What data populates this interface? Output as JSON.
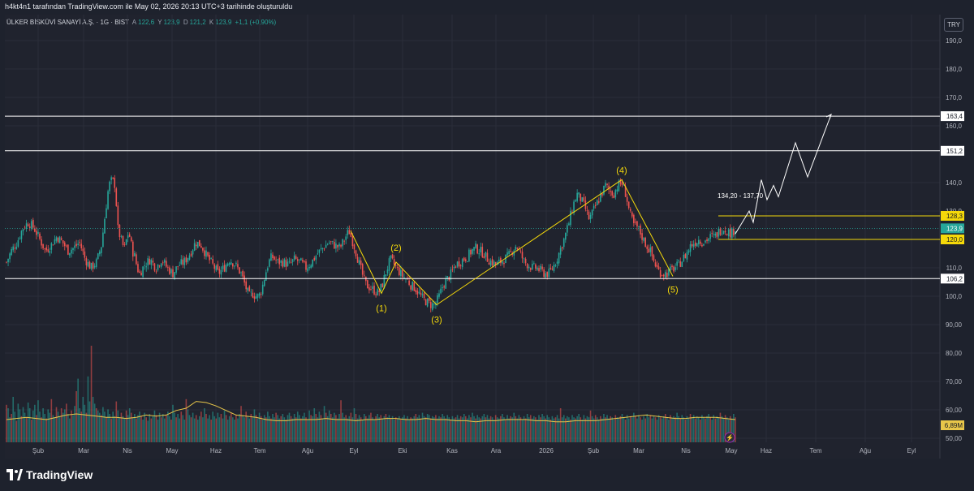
{
  "caption": "h4kt4n1 tarafından TradingView.com ile May 02, 2026 20:13 UTC+3 tarihinde oluşturuldu",
  "symbol": {
    "name": "ÜLKER BİSKÜVİ SANAYİ A.Ş. · 1G · BIST",
    "a_key": "A",
    "a_val": "122,6",
    "y_key": "Y",
    "y_val": "123,9",
    "d_key": "D",
    "d_val": "121,2",
    "k_key": "K",
    "k_val": "123,9",
    "change": "+1,1 (+0,90%)"
  },
  "currency": "TRY",
  "brand": "TradingView",
  "colors": {
    "background": "#1e222d",
    "up": "#26a69a",
    "down": "#ef5350",
    "wave": "#f5d90a",
    "level": "#ffffff",
    "volume_ma": "#e9c74a"
  },
  "chart_data": {
    "type": "candlestick",
    "x_labels": [
      "Şub",
      "Mar",
      "Nis",
      "May",
      "Haz",
      "Tem",
      "Ağu",
      "Eyl",
      "Eki",
      "Kas",
      "Ara",
      "2026",
      "Şub",
      "Mar",
      "Nis",
      "May",
      "Haz",
      "Tem",
      "Ağu",
      "Eyl"
    ],
    "y_ticks": [
      "190,0",
      "180,0",
      "170,0",
      "160,0",
      "140,0",
      "130,0",
      "110,0",
      "100,0",
      "90,00",
      "80,00",
      "70,00",
      "60,00",
      "50,00"
    ],
    "ylim": [
      47,
      203
    ],
    "price_path": [
      [
        0,
        112
      ],
      [
        6,
        116
      ],
      [
        13,
        119
      ],
      [
        20,
        124
      ],
      [
        27,
        126
      ],
      [
        34,
        124
      ],
      [
        41,
        120
      ],
      [
        48,
        116
      ],
      [
        55,
        118
      ],
      [
        62,
        121
      ],
      [
        69,
        119
      ],
      [
        76,
        116
      ],
      [
        83,
        117
      ],
      [
        90,
        119
      ],
      [
        97,
        113
      ],
      [
        104,
        110
      ],
      [
        111,
        112
      ],
      [
        117,
        118
      ],
      [
        122,
        130
      ],
      [
        126,
        139
      ],
      [
        130,
        141
      ],
      [
        134,
        139
      ],
      [
        137,
        124
      ],
      [
        140,
        121
      ],
      [
        143,
        118
      ],
      [
        146,
        117
      ],
      [
        149,
        122
      ],
      [
        152,
        121
      ],
      [
        155,
        116
      ],
      [
        158,
        114
      ],
      [
        161,
        110
      ],
      [
        164,
        108
      ],
      [
        170,
        111
      ],
      [
        177,
        113
      ],
      [
        184,
        110
      ],
      [
        191,
        113
      ],
      [
        198,
        110
      ],
      [
        205,
        108
      ],
      [
        212,
        111
      ],
      [
        219,
        112
      ],
      [
        226,
        115
      ],
      [
        233,
        119
      ],
      [
        240,
        118
      ],
      [
        247,
        114
      ],
      [
        254,
        111
      ],
      [
        261,
        108
      ],
      [
        268,
        110
      ],
      [
        275,
        113
      ],
      [
        282,
        111
      ],
      [
        289,
        108
      ],
      [
        295,
        103
      ],
      [
        299,
        100
      ],
      [
        303,
        101
      ],
      [
        307,
        100
      ],
      [
        311,
        100
      ],
      [
        315,
        103
      ],
      [
        319,
        108
      ],
      [
        323,
        112
      ],
      [
        327,
        114
      ],
      [
        334,
        112
      ],
      [
        341,
        112
      ],
      [
        348,
        111
      ],
      [
        355,
        113
      ],
      [
        362,
        112
      ],
      [
        369,
        110
      ],
      [
        376,
        112
      ],
      [
        383,
        115
      ],
      [
        390,
        117
      ],
      [
        397,
        119
      ],
      [
        404,
        118
      ],
      [
        411,
        117
      ],
      [
        418,
        121
      ],
      [
        422,
        123
      ],
      [
        428,
        118
      ],
      [
        433,
        113
      ],
      [
        438,
        108
      ],
      [
        443,
        104
      ],
      [
        448,
        103
      ],
      [
        453,
        102
      ],
      [
        458,
        101
      ],
      [
        463,
        104
      ],
      [
        468,
        109
      ],
      [
        473,
        113
      ],
      [
        478,
        111
      ],
      [
        483,
        109
      ],
      [
        488,
        107
      ],
      [
        493,
        106
      ],
      [
        498,
        104
      ],
      [
        503,
        103
      ],
      [
        508,
        101
      ],
      [
        513,
        99
      ],
      [
        518,
        98
      ],
      [
        523,
        97
      ],
      [
        528,
        97
      ],
      [
        533,
        100
      ],
      [
        538,
        104
      ],
      [
        543,
        106
      ],
      [
        548,
        108
      ],
      [
        553,
        111
      ],
      [
        558,
        112
      ],
      [
        563,
        113
      ],
      [
        568,
        114
      ],
      [
        573,
        116
      ],
      [
        578,
        117
      ],
      [
        583,
        116
      ],
      [
        588,
        115
      ],
      [
        593,
        113
      ],
      [
        598,
        112
      ],
      [
        603,
        111
      ],
      [
        608,
        112
      ],
      [
        613,
        113
      ],
      [
        618,
        114
      ],
      [
        623,
        116
      ],
      [
        628,
        118
      ],
      [
        633,
        115
      ],
      [
        638,
        112
      ],
      [
        643,
        111
      ],
      [
        648,
        110
      ],
      [
        653,
        110
      ],
      [
        658,
        109
      ],
      [
        663,
        108
      ],
      [
        668,
        108
      ],
      [
        673,
        110
      ],
      [
        678,
        113
      ],
      [
        683,
        117
      ],
      [
        688,
        121
      ],
      [
        693,
        126
      ],
      [
        698,
        132
      ],
      [
        703,
        136
      ],
      [
        708,
        134
      ],
      [
        713,
        131
      ],
      [
        718,
        127
      ],
      [
        723,
        130
      ],
      [
        728,
        133
      ],
      [
        733,
        136
      ],
      [
        738,
        139
      ],
      [
        743,
        137
      ],
      [
        748,
        136
      ],
      [
        753,
        139
      ],
      [
        758,
        140
      ],
      [
        763,
        136
      ],
      [
        768,
        129
      ],
      [
        773,
        125
      ],
      [
        778,
        124
      ],
      [
        783,
        121
      ],
      [
        788,
        118
      ],
      [
        793,
        116
      ],
      [
        798,
        112
      ],
      [
        803,
        109
      ],
      [
        808,
        108
      ],
      [
        813,
        108
      ],
      [
        818,
        109
      ],
      [
        823,
        110
      ],
      [
        828,
        111
      ],
      [
        833,
        113
      ],
      [
        838,
        115
      ],
      [
        843,
        118
      ],
      [
        848,
        119
      ],
      [
        853,
        120
      ],
      [
        858,
        119
      ],
      [
        863,
        120
      ],
      [
        868,
        121
      ],
      [
        873,
        121
      ],
      [
        878,
        123
      ],
      [
        883,
        124
      ],
      [
        888,
        123
      ],
      [
        893,
        122
      ],
      [
        898,
        124
      ]
    ],
    "levels": [
      {
        "value": 163.4,
        "label": "163,4"
      },
      {
        "value": 151.2,
        "label": "151,2"
      },
      {
        "value": 106.2,
        "label": "106,2"
      }
    ],
    "zone_levels": [
      {
        "value": 128.3,
        "label": "128,3"
      },
      {
        "value": 120.0,
        "label": "120,0"
      }
    ],
    "last_price": {
      "value": 123.9,
      "label": "123,9"
    },
    "zone_text": "134,20 - 137,70",
    "waves": [
      {
        "label": "(1)",
        "x": 462,
        "y": 101
      },
      {
        "label": "(2)",
        "x": 480,
        "y": 112
      },
      {
        "label": "(3)",
        "x": 530,
        "y": 97
      },
      {
        "label": "(4)",
        "x": 758,
        "y": 141
      },
      {
        "label": "(5)",
        "x": 821,
        "y": 107
      }
    ],
    "wave_path": [
      [
        424,
        123
      ],
      [
        462,
        101
      ],
      [
        480,
        112
      ],
      [
        530,
        97
      ],
      [
        758,
        141
      ],
      [
        821,
        107
      ]
    ],
    "projection_path": [
      [
        898,
        122
      ],
      [
        915,
        130
      ],
      [
        920,
        126
      ],
      [
        930,
        141
      ],
      [
        937,
        134
      ],
      [
        945,
        139
      ],
      [
        951,
        135
      ],
      [
        972,
        154
      ],
      [
        987,
        142
      ],
      [
        1016,
        164
      ]
    ],
    "volume": {
      "label": "6,89M",
      "ma": [
        0.2,
        0.21,
        0.22,
        0.21,
        0.2,
        0.22,
        0.24,
        0.25,
        0.24,
        0.23,
        0.22,
        0.22,
        0.21,
        0.22,
        0.24,
        0.23,
        0.24,
        0.28,
        0.3,
        0.36,
        0.35,
        0.32,
        0.28,
        0.24,
        0.23,
        0.22,
        0.2,
        0.19,
        0.19,
        0.2,
        0.2,
        0.2,
        0.21,
        0.2,
        0.2,
        0.19,
        0.2,
        0.2,
        0.21,
        0.21,
        0.2,
        0.2,
        0.21,
        0.2,
        0.2,
        0.19,
        0.19,
        0.18,
        0.19,
        0.19,
        0.2,
        0.2,
        0.2,
        0.19,
        0.19,
        0.18,
        0.18,
        0.19,
        0.19,
        0.19,
        0.2,
        0.21,
        0.22,
        0.23,
        0.24,
        0.23,
        0.22,
        0.21,
        0.21,
        0.22,
        0.22,
        0.22,
        0.21,
        0.2
      ],
      "bars": [
        0.33,
        0.3,
        0.22,
        0.25,
        0.4,
        0.27,
        0.19,
        0.34,
        0.29,
        0.23,
        0.31,
        0.26,
        0.22,
        0.35,
        0.3,
        0.2,
        0.28,
        0.33,
        0.24,
        0.37,
        0.27,
        0.22,
        0.3,
        0.25,
        0.21,
        0.29,
        0.26,
        0.38,
        0.24,
        0.22,
        0.31,
        0.27,
        0.23,
        0.3,
        0.26,
        0.29,
        0.34,
        0.25,
        0.21,
        0.28,
        0.24,
        0.32,
        0.45,
        0.56,
        0.3,
        0.27,
        0.4,
        0.33,
        0.26,
        0.58,
        0.36,
        0.85,
        0.4,
        0.34,
        0.3,
        0.28,
        0.26,
        0.24,
        0.31,
        0.27,
        0.22,
        0.29,
        0.25,
        0.21,
        0.27,
        0.23,
        0.36,
        0.28,
        0.22,
        0.26,
        0.23,
        0.21,
        0.28,
        0.24,
        0.3,
        0.26,
        0.22,
        0.25,
        0.21,
        0.24,
        0.27,
        0.23,
        0.2,
        0.26,
        0.22,
        0.19,
        0.25,
        0.21,
        0.23,
        0.28,
        0.24,
        0.2,
        0.26,
        0.22,
        0.25,
        0.21,
        0.24,
        0.27,
        0.23,
        0.2,
        0.33,
        0.26,
        0.22,
        0.25,
        0.21,
        0.27,
        0.24,
        0.2,
        0.38,
        0.29,
        0.24,
        0.22,
        0.26,
        0.21,
        0.24,
        0.2,
        0.23,
        0.27,
        0.22,
        0.3,
        0.25,
        0.21,
        0.24,
        0.2,
        0.27,
        0.23,
        0.21,
        0.26,
        0.22,
        0.25,
        0.21,
        0.28,
        0.24,
        0.2,
        0.23,
        0.26,
        0.22,
        0.2,
        0.24,
        0.21,
        0.25,
        0.32,
        0.24,
        0.22,
        0.27,
        0.23,
        0.21,
        0.25,
        0.22,
        0.29,
        0.24,
        0.21,
        0.26,
        0.23,
        0.2,
        0.24,
        0.22,
        0.27,
        0.23,
        0.21,
        0.25,
        0.22,
        0.26,
        0.24,
        0.21,
        0.23,
        0.25,
        0.22,
        0.2,
        0.24,
        0.26,
        0.23,
        0.21,
        0.25,
        0.22,
        0.27,
        0.24,
        0.21,
        0.23,
        0.26,
        0.22,
        0.2,
        0.28,
        0.24,
        0.23,
        0.3,
        0.25,
        0.22,
        0.27,
        0.24,
        0.21,
        0.32,
        0.26,
        0.23,
        0.28,
        0.25,
        0.22,
        0.26,
        0.24,
        0.21,
        0.25,
        0.37,
        0.26,
        0.22,
        0.24,
        0.21,
        0.23,
        0.26,
        0.22,
        0.3,
        0.25,
        0.21,
        0.24,
        0.22,
        0.2,
        0.25,
        0.23,
        0.21,
        0.24,
        0.26,
        0.22,
        0.2,
        0.23,
        0.25,
        0.22,
        0.24,
        0.21,
        0.23,
        0.25,
        0.22,
        0.24,
        0.21,
        0.23,
        0.2,
        0.22,
        0.21,
        0.23,
        0.2,
        0.22,
        0.24,
        0.21,
        0.23,
        0.2,
        0.22,
        0.21,
        0.23,
        0.25,
        0.22,
        0.24,
        0.21,
        0.26,
        0.23,
        0.22,
        0.25,
        0.24,
        0.21,
        0.23,
        0.22,
        0.24,
        0.21,
        0.23,
        0.22,
        0.25,
        0.23,
        0.21,
        0.24,
        0.22,
        0.2,
        0.23,
        0.21,
        0.22,
        0.24,
        0.21,
        0.23,
        0.22,
        0.25,
        0.23,
        0.21,
        0.24,
        0.22,
        0.26,
        0.23,
        0.21,
        0.24,
        0.22,
        0.21,
        0.23,
        0.25,
        0.22,
        0.24,
        0.21,
        0.23,
        0.22,
        0.2,
        0.24,
        0.22,
        0.21,
        0.23,
        0.25,
        0.22,
        0.2,
        0.24,
        0.21,
        0.23,
        0.22,
        0.26,
        0.23,
        0.21,
        0.24,
        0.22,
        0.2,
        0.23,
        0.21,
        0.25,
        0.22,
        0.24,
        0.21,
        0.23,
        0.22,
        0.2,
        0.24,
        0.22,
        0.25,
        0.23,
        0.21,
        0.24,
        0.22,
        0.2,
        0.23,
        0.21,
        0.22,
        0.24,
        0.21,
        0.3,
        0.22,
        0.24,
        0.21,
        0.23,
        0.22,
        0.2,
        0.24,
        0.22,
        0.21,
        0.23,
        0.25,
        0.22,
        0.2,
        0.24,
        0.21,
        0.23,
        0.22,
        0.28,
        0.23,
        0.21,
        0.24,
        0.22,
        0.2,
        0.23,
        0.21,
        0.25,
        0.22,
        0.24,
        0.21,
        0.23,
        0.22,
        0.2,
        0.24,
        0.22,
        0.21,
        0.23,
        0.25,
        0.22,
        0.2,
        0.24,
        0.21,
        0.23,
        0.22,
        0.26,
        0.23,
        0.21,
        0.24,
        0.22,
        0.2,
        0.23,
        0.21,
        0.25,
        0.22,
        0.24,
        0.21,
        0.23,
        0.22,
        0.2,
        0.24,
        0.22,
        0.21,
        0.23,
        0.25,
        0.22,
        0.2,
        0.24,
        0.21,
        0.23,
        0.22,
        0.26,
        0.23,
        0.21,
        0.24,
        0.22,
        0.2,
        0.23,
        0.21,
        0.25,
        0.22,
        0.24,
        0.21,
        0.23,
        0.22,
        0.2,
        0.24,
        0.22,
        0.21,
        0.23,
        0.25,
        0.22,
        0.2,
        0.24,
        0.21,
        0.23,
        0.22,
        0.26,
        0.23,
        0.21,
        0.24,
        0.22,
        0.2,
        0.23,
        0.21,
        0.25,
        0.22,
        0.24,
        0.21,
        0.23,
        0.22,
        0.2,
        0.24,
        0.22,
        0.21,
        0.23
      ]
    }
  }
}
